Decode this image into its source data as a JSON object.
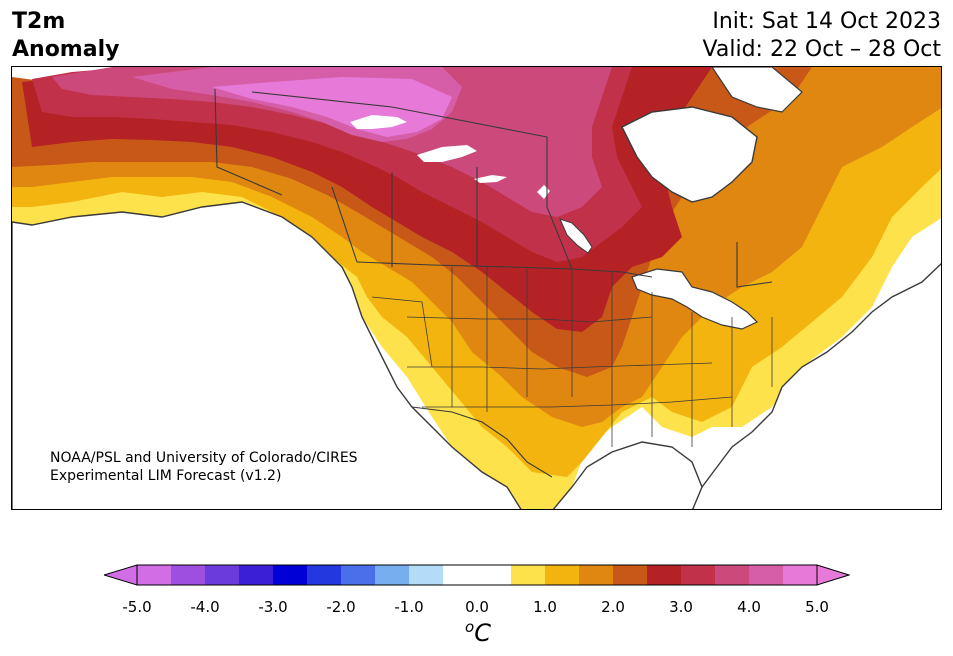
{
  "header": {
    "title_line1": "T2m",
    "title_line2": "Anomaly",
    "init": "Init: Sat 14 Oct 2023",
    "valid": "Valid: 22 Oct – 28 Oct"
  },
  "credit": {
    "line1": "NOAA/PSL and University of Colorado/CIRES",
    "line2": "Experimental LIM Forecast (v1.2)"
  },
  "colorbar": {
    "unit_base": "C",
    "unit_sup": "o",
    "bins": [
      {
        "low": -5.0,
        "high": -4.5,
        "color": "#d16ee6"
      },
      {
        "low": -4.5,
        "high": -4.0,
        "color": "#9e4fe0"
      },
      {
        "low": -4.0,
        "high": -3.5,
        "color": "#6c3bdb"
      },
      {
        "low": -3.5,
        "high": -3.0,
        "color": "#3b1fd6"
      },
      {
        "low": -3.0,
        "high": -2.5,
        "color": "#0000d6"
      },
      {
        "low": -2.5,
        "high": -2.0,
        "color": "#2438e0"
      },
      {
        "low": -2.0,
        "high": -1.5,
        "color": "#4a6fe8"
      },
      {
        "low": -1.5,
        "high": -1.0,
        "color": "#77aef0"
      },
      {
        "low": -1.0,
        "high": -0.5,
        "color": "#b2dcf8"
      },
      {
        "low": -0.5,
        "high": 0.0,
        "color": "#ffffff"
      },
      {
        "low": 0.0,
        "high": 0.5,
        "color": "#ffffff"
      },
      {
        "low": 0.5,
        "high": 1.0,
        "color": "#fde24b"
      },
      {
        "low": 1.0,
        "high": 1.5,
        "color": "#f3b40f"
      },
      {
        "low": 1.5,
        "high": 2.0,
        "color": "#e08712"
      },
      {
        "low": 2.0,
        "high": 2.5,
        "color": "#c85818"
      },
      {
        "low": 2.5,
        "high": 3.0,
        "color": "#b52225"
      },
      {
        "low": 3.0,
        "high": 3.5,
        "color": "#c2314a"
      },
      {
        "low": 3.5,
        "high": 4.0,
        "color": "#cc4a7b"
      },
      {
        "low": 4.0,
        "high": 4.5,
        "color": "#d65ea8"
      },
      {
        "low": 4.5,
        "high": 5.0,
        "color": "#e77ad9"
      }
    ],
    "under_color": "#d16ee6",
    "over_color": "#e77ad9",
    "ticks": [
      "-5.0",
      "-4.0",
      "-3.0",
      "-2.0",
      "-1.0",
      "0.0",
      "1.0",
      "2.0",
      "3.0",
      "4.0",
      "5.0"
    ]
  },
  "map": {
    "region": "North America",
    "variable": "2 m temperature anomaly",
    "ocean_color": "#ffffff",
    "border_color": "#3a3a3a"
  }
}
